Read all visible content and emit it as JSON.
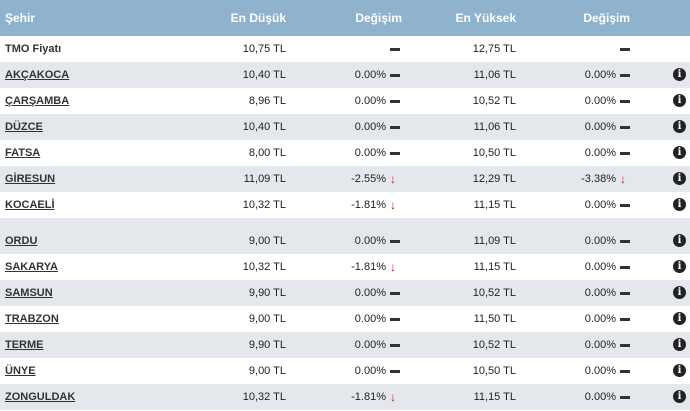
{
  "header": {
    "city": "Şehir",
    "low": "En Düşük",
    "change_low": "Değişim",
    "high": "En Yüksek",
    "change_high": "Değişim"
  },
  "info_glyph": "i",
  "down_glyph": "↓",
  "colors": {
    "header_bg": "#8fb3cc",
    "alt_row": "#e4e8ec",
    "down_arrow": "#c0202a"
  },
  "rows": [
    {
      "city": "TMO Fiyatı",
      "low": "10,75 TL",
      "ch1": "",
      "ind1": "flat",
      "high": "12,75 TL",
      "ch2": "",
      "ind2": "flat",
      "link": false,
      "info": false
    },
    {
      "city": "AKÇAKOCA",
      "low": "10,40 TL",
      "ch1": "0.00%",
      "ind1": "flat",
      "high": "11,06 TL",
      "ch2": "0.00%",
      "ind2": "flat",
      "link": true,
      "info": true
    },
    {
      "city": "ÇARŞAMBA",
      "low": "8,96 TL",
      "ch1": "0.00%",
      "ind1": "flat",
      "high": "10,52 TL",
      "ch2": "0.00%",
      "ind2": "flat",
      "link": true,
      "info": true
    },
    {
      "city": "DÜZCE",
      "low": "10,40 TL",
      "ch1": "0.00%",
      "ind1": "flat",
      "high": "11,06 TL",
      "ch2": "0.00%",
      "ind2": "flat",
      "link": true,
      "info": true
    },
    {
      "city": "FATSA",
      "low": "8,00 TL",
      "ch1": "0.00%",
      "ind1": "flat",
      "high": "10,50 TL",
      "ch2": "0.00%",
      "ind2": "flat",
      "link": true,
      "info": true
    },
    {
      "city": "GİRESUN",
      "low": "11,09 TL",
      "ch1": "-2.55%",
      "ind1": "down",
      "high": "12,29 TL",
      "ch2": "-3.38%",
      "ind2": "down",
      "link": true,
      "info": true
    },
    {
      "city": "KOCAELİ",
      "low": "10,32 TL",
      "ch1": "-1.81%",
      "ind1": "down",
      "high": "11,15 TL",
      "ch2": "0.00%",
      "ind2": "flat",
      "link": true,
      "info": true
    },
    {
      "spacer": true
    },
    {
      "city": "ORDU",
      "low": "9,00 TL",
      "ch1": "0.00%",
      "ind1": "flat",
      "high": "11,09 TL",
      "ch2": "0.00%",
      "ind2": "flat",
      "link": true,
      "info": true
    },
    {
      "city": "SAKARYA",
      "low": "10,32 TL",
      "ch1": "-1.81%",
      "ind1": "down",
      "high": "11,15 TL",
      "ch2": "0.00%",
      "ind2": "flat",
      "link": true,
      "info": true
    },
    {
      "city": "SAMSUN",
      "low": "9,90 TL",
      "ch1": "0.00%",
      "ind1": "flat",
      "high": "10,52 TL",
      "ch2": "0.00%",
      "ind2": "flat",
      "link": true,
      "info": true
    },
    {
      "city": "TRABZON",
      "low": "9,00 TL",
      "ch1": "0.00%",
      "ind1": "flat",
      "high": "11,50 TL",
      "ch2": "0.00%",
      "ind2": "flat",
      "link": true,
      "info": true
    },
    {
      "city": "TERME",
      "low": "9,90 TL",
      "ch1": "0.00%",
      "ind1": "flat",
      "high": "10,52 TL",
      "ch2": "0.00%",
      "ind2": "flat",
      "link": true,
      "info": true
    },
    {
      "city": "ÜNYE",
      "low": "9,00 TL",
      "ch1": "0.00%",
      "ind1": "flat",
      "high": "10,50 TL",
      "ch2": "0.00%",
      "ind2": "flat",
      "link": true,
      "info": true
    },
    {
      "city": "ZONGULDAK",
      "low": "10,32 TL",
      "ch1": "-1.81%",
      "ind1": "down",
      "high": "11,15 TL",
      "ch2": "0.00%",
      "ind2": "flat",
      "link": true,
      "info": true
    }
  ]
}
